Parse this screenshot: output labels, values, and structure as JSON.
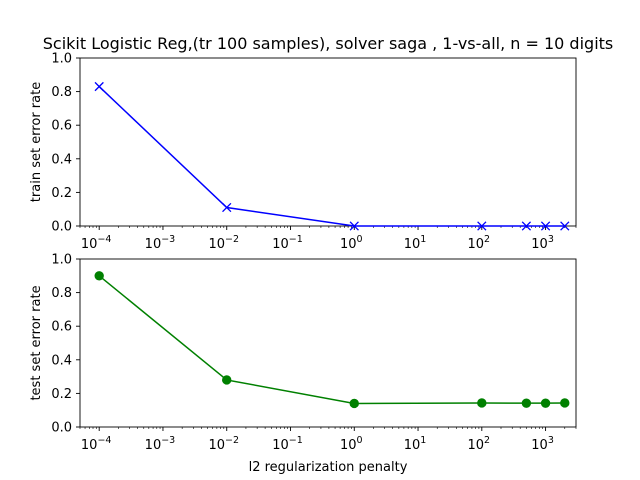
{
  "figure": {
    "title": "Scikit Logistic Reg,(tr 100 samples), solver saga , 1-vs-all, n = 10 digits"
  },
  "chart_data": [
    {
      "type": "line",
      "title": "Scikit Logistic Reg,(tr 100 samples), solver saga , 1-vs-all, n = 10 digits",
      "xlabel": "",
      "ylabel": "train set error rate",
      "xscale": "log",
      "xlim": [
        5e-05,
        3000
      ],
      "ylim": [
        0,
        1.0
      ],
      "x": [
        0.0001,
        0.01,
        1,
        100,
        500,
        1000,
        2000
      ],
      "series": [
        {
          "values": [
            0.83,
            0.11,
            0.0,
            0.0,
            0.0,
            0.0,
            0.0
          ],
          "color": "#0000ff",
          "marker": "x"
        }
      ],
      "xticks": [
        {
          "base": "10",
          "exp": "−4"
        },
        {
          "base": "10",
          "exp": "−3"
        },
        {
          "base": "10",
          "exp": "−2"
        },
        {
          "base": "10",
          "exp": "−1"
        },
        {
          "base": "10",
          "exp": "0"
        },
        {
          "base": "10",
          "exp": "1"
        },
        {
          "base": "10",
          "exp": "2"
        },
        {
          "base": "10",
          "exp": "3"
        }
      ],
      "yticks": [
        "0.0",
        "0.2",
        "0.4",
        "0.6",
        "0.8",
        "1.0"
      ],
      "grid": false
    },
    {
      "type": "line",
      "title": "",
      "xlabel": "l2 regularization penalty",
      "ylabel": "test set error rate",
      "xscale": "log",
      "xlim": [
        5e-05,
        3000
      ],
      "ylim": [
        0,
        1.0
      ],
      "x": [
        0.0001,
        0.01,
        1,
        100,
        500,
        1000,
        2000
      ],
      "series": [
        {
          "values": [
            0.9,
            0.28,
            0.14,
            0.143,
            0.142,
            0.142,
            0.143
          ],
          "color": "#008000",
          "marker": "o"
        }
      ],
      "xticks": [
        {
          "base": "10",
          "exp": "−4"
        },
        {
          "base": "10",
          "exp": "−3"
        },
        {
          "base": "10",
          "exp": "−2"
        },
        {
          "base": "10",
          "exp": "−1"
        },
        {
          "base": "10",
          "exp": "0"
        },
        {
          "base": "10",
          "exp": "1"
        },
        {
          "base": "10",
          "exp": "2"
        },
        {
          "base": "10",
          "exp": "3"
        }
      ],
      "yticks": [
        "0.0",
        "0.2",
        "0.4",
        "0.6",
        "0.8",
        "1.0"
      ],
      "grid": false
    }
  ]
}
